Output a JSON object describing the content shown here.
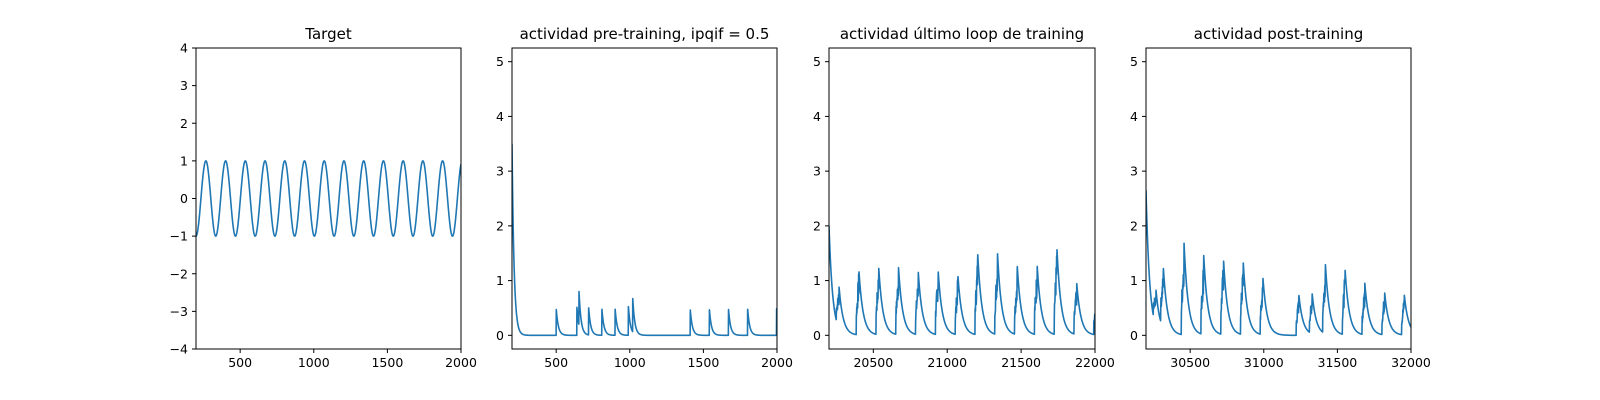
{
  "chart_data": [
    {
      "type": "line",
      "title": "Target",
      "xlim": [
        200,
        2000
      ],
      "ylim": [
        -4,
        4
      ],
      "xticks": [
        500,
        1000,
        1500,
        2000
      ],
      "yticks": [
        -4,
        -3,
        -2,
        -1,
        0,
        1,
        2,
        3,
        4
      ],
      "series_color": "#1f77b4",
      "signal": {
        "kind": "sine",
        "amplitude": 1,
        "period": 134,
        "phase_at_xmin": "trough"
      }
    },
    {
      "type": "line",
      "title": "actividad pre-training, ipqif = 0.5",
      "xlim": [
        200,
        2000
      ],
      "ylim": [
        -0.25,
        5.25
      ],
      "xticks": [
        500,
        1000,
        1500,
        2000
      ],
      "yticks": [
        0,
        1,
        2,
        3,
        4,
        5
      ],
      "series_color": "#1f77b4",
      "signal": {
        "kind": "decaying-spikes",
        "initial": 3.5,
        "tau": 14,
        "spikes": [
          {
            "x": 500,
            "h": 0.5
          },
          {
            "x": 640,
            "h": 0.55
          },
          {
            "x": 655,
            "h": 0.62
          },
          {
            "x": 720,
            "h": 0.52
          },
          {
            "x": 810,
            "h": 0.5
          },
          {
            "x": 900,
            "h": 0.5
          },
          {
            "x": 990,
            "h": 0.55
          },
          {
            "x": 1020,
            "h": 0.62
          },
          {
            "x": 1410,
            "h": 0.5
          },
          {
            "x": 1540,
            "h": 0.5
          },
          {
            "x": 1670,
            "h": 0.5
          },
          {
            "x": 1800,
            "h": 0.5
          },
          {
            "x": 1997,
            "h": 0.5
          }
        ]
      }
    },
    {
      "type": "line",
      "title": "actividad último loop de training",
      "xlim": [
        20200,
        22000
      ],
      "ylim": [
        -0.25,
        5.25
      ],
      "xticks": [
        20500,
        21000,
        21500,
        22000
      ],
      "yticks": [
        0,
        1,
        2,
        3,
        4,
        5
      ],
      "series_color": "#1f77b4",
      "signal": {
        "kind": "bursts",
        "initial": 2.0,
        "tau": 28,
        "period": 134,
        "first_burst": 20250,
        "bursts": [
          {
            "x": 20250,
            "h": 0.75
          },
          {
            "x": 20384,
            "h": 1.2
          },
          {
            "x": 20518,
            "h": 1.25
          },
          {
            "x": 20652,
            "h": 1.25
          },
          {
            "x": 20786,
            "h": 1.15
          },
          {
            "x": 20920,
            "h": 1.2
          },
          {
            "x": 21054,
            "h": 1.1
          },
          {
            "x": 21188,
            "h": 1.5
          },
          {
            "x": 21322,
            "h": 1.5
          },
          {
            "x": 21456,
            "h": 1.25
          },
          {
            "x": 21590,
            "h": 1.3
          },
          {
            "x": 21724,
            "h": 1.6
          },
          {
            "x": 21858,
            "h": 0.95
          },
          {
            "x": 21992,
            "h": 0.7
          }
        ]
      }
    },
    {
      "type": "line",
      "title": "actividad post-training",
      "xlim": [
        30200,
        32000
      ],
      "ylim": [
        -0.25,
        5.25
      ],
      "xticks": [
        30500,
        31000,
        31500,
        32000
      ],
      "yticks": [
        0,
        1,
        2,
        3,
        4,
        5
      ],
      "series_color": "#1f77b4",
      "signal": {
        "kind": "bursts",
        "initial": 2.65,
        "tau": 28,
        "period": 134,
        "first_burst": 30250,
        "bursts": [
          {
            "x": 30250,
            "h": 0.65
          },
          {
            "x": 30300,
            "h": 1.1
          },
          {
            "x": 30440,
            "h": 1.7
          },
          {
            "x": 30574,
            "h": 1.45
          },
          {
            "x": 30708,
            "h": 1.4
          },
          {
            "x": 30842,
            "h": 1.35
          },
          {
            "x": 30976,
            "h": 1.05
          },
          {
            "x": 31220,
            "h": 0.75
          },
          {
            "x": 31310,
            "h": 0.75
          },
          {
            "x": 31400,
            "h": 1.3
          },
          {
            "x": 31534,
            "h": 1.2
          },
          {
            "x": 31668,
            "h": 0.95
          },
          {
            "x": 31802,
            "h": 0.8
          },
          {
            "x": 31936,
            "h": 0.75
          }
        ]
      }
    }
  ]
}
